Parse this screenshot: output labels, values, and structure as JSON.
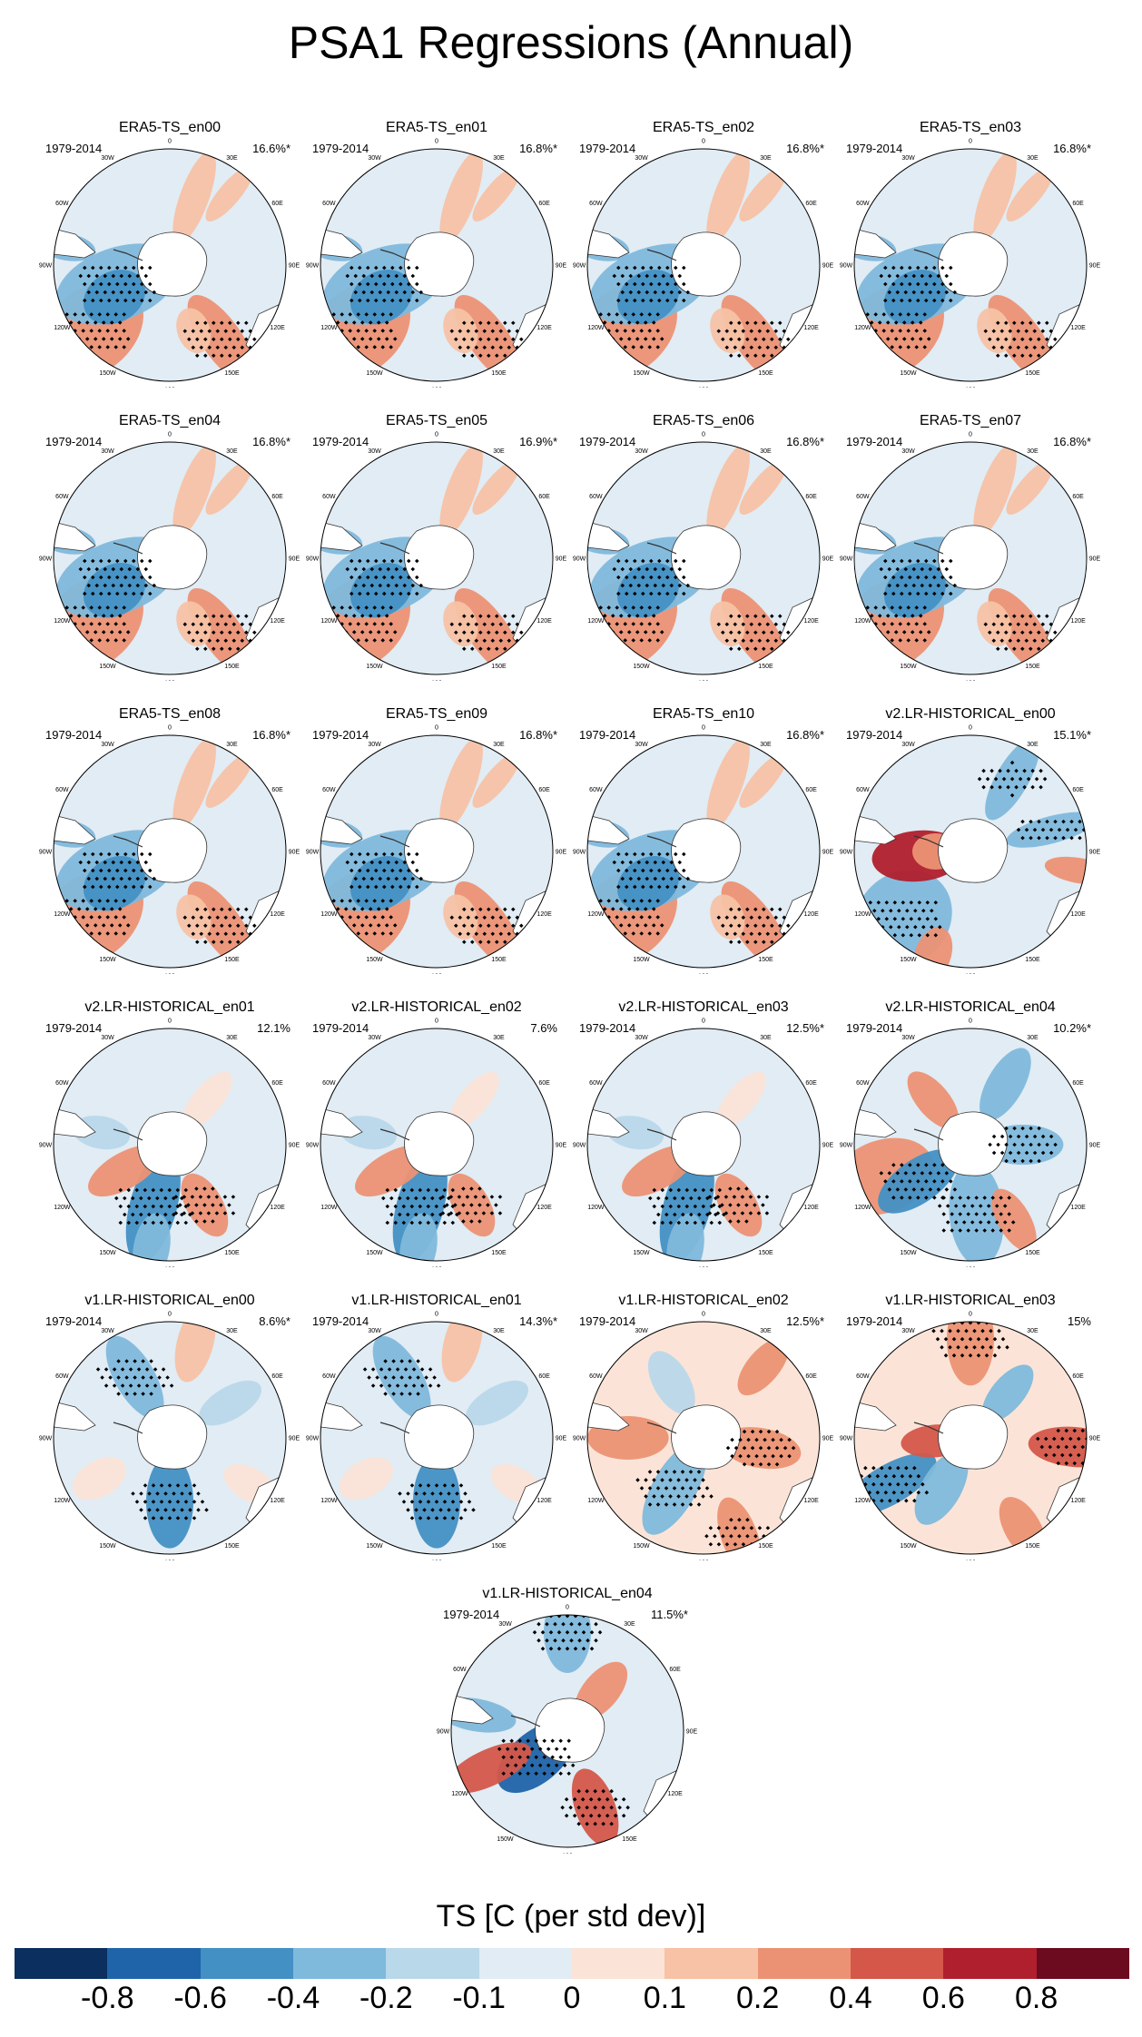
{
  "title": "PSA1 Regressions (Annual)",
  "colorbar": {
    "label": "TS [C (per std dev)]",
    "colors": [
      "#0b2f5e",
      "#1f64a8",
      "#4390c4",
      "#7fb9dc",
      "#b9d8ea",
      "#e1ecf4",
      "#fbe4d7",
      "#f7c2a5",
      "#ec9274",
      "#d4574a",
      "#b01f2d",
      "#6c0a1f"
    ],
    "ticks": [
      "-0.8",
      "-0.6",
      "-0.4",
      "-0.2",
      "-0.1",
      "0",
      "0.1",
      "0.2",
      "0.4",
      "0.6",
      "0.8"
    ]
  },
  "longitude_labels": [
    "0",
    "30E",
    "60E",
    "90E",
    "120E",
    "150E",
    "180",
    "150W",
    "120W",
    "90W",
    "60W",
    "30W"
  ],
  "panels": [
    {
      "title": "ERA5-TS_en00",
      "period": "1979-2014",
      "pct": "16.6%*",
      "source": "era5"
    },
    {
      "title": "ERA5-TS_en01",
      "period": "1979-2014",
      "pct": "16.8%*",
      "source": "era5"
    },
    {
      "title": "ERA5-TS_en02",
      "period": "1979-2014",
      "pct": "16.8%*",
      "source": "era5"
    },
    {
      "title": "ERA5-TS_en03",
      "period": "1979-2014",
      "pct": "16.8%*",
      "source": "era5"
    },
    {
      "title": "ERA5-TS_en04",
      "period": "1979-2014",
      "pct": "16.8%*",
      "source": "era5"
    },
    {
      "title": "ERA5-TS_en05",
      "period": "1979-2014",
      "pct": "16.9%*",
      "source": "era5"
    },
    {
      "title": "ERA5-TS_en06",
      "period": "1979-2014",
      "pct": "16.8%*",
      "source": "era5"
    },
    {
      "title": "ERA5-TS_en07",
      "period": "1979-2014",
      "pct": "16.8%*",
      "source": "era5"
    },
    {
      "title": "ERA5-TS_en08",
      "period": "1979-2014",
      "pct": "16.8%*",
      "source": "era5"
    },
    {
      "title": "ERA5-TS_en09",
      "period": "1979-2014",
      "pct": "16.8%*",
      "source": "era5"
    },
    {
      "title": "ERA5-TS_en10",
      "period": "1979-2014",
      "pct": "16.8%*",
      "source": "era5"
    },
    {
      "title": "v2.LR-HISTORICAL_en00",
      "period": "1979-2014",
      "pct": "15.1%*",
      "source": "v2a"
    },
    {
      "title": "v2.LR-HISTORICAL_en01",
      "period": "1979-2014",
      "pct": "12.1%",
      "source": "v2b"
    },
    {
      "title": "v2.LR-HISTORICAL_en02",
      "period": "1979-2014",
      "pct": "7.6%",
      "source": "v2b"
    },
    {
      "title": "v2.LR-HISTORICAL_en03",
      "period": "1979-2014",
      "pct": "12.5%*",
      "source": "v2b"
    },
    {
      "title": "v2.LR-HISTORICAL_en04",
      "period": "1979-2014",
      "pct": "10.2%*",
      "source": "v2c"
    },
    {
      "title": "v1.LR-HISTORICAL_en00",
      "period": "1979-2014",
      "pct": "8.6%*",
      "source": "v1a"
    },
    {
      "title": "v1.LR-HISTORICAL_en01",
      "period": "1979-2014",
      "pct": "14.3%*",
      "source": "v1a"
    },
    {
      "title": "v1.LR-HISTORICAL_en02",
      "period": "1979-2014",
      "pct": "12.5%*",
      "source": "v1b"
    },
    {
      "title": "v1.LR-HISTORICAL_en03",
      "period": "1979-2014",
      "pct": "15%",
      "source": "v1c"
    },
    {
      "title": "v1.LR-HISTORICAL_en04",
      "period": "1979-2014",
      "pct": "11.5%*",
      "source": "v1d"
    }
  ]
}
